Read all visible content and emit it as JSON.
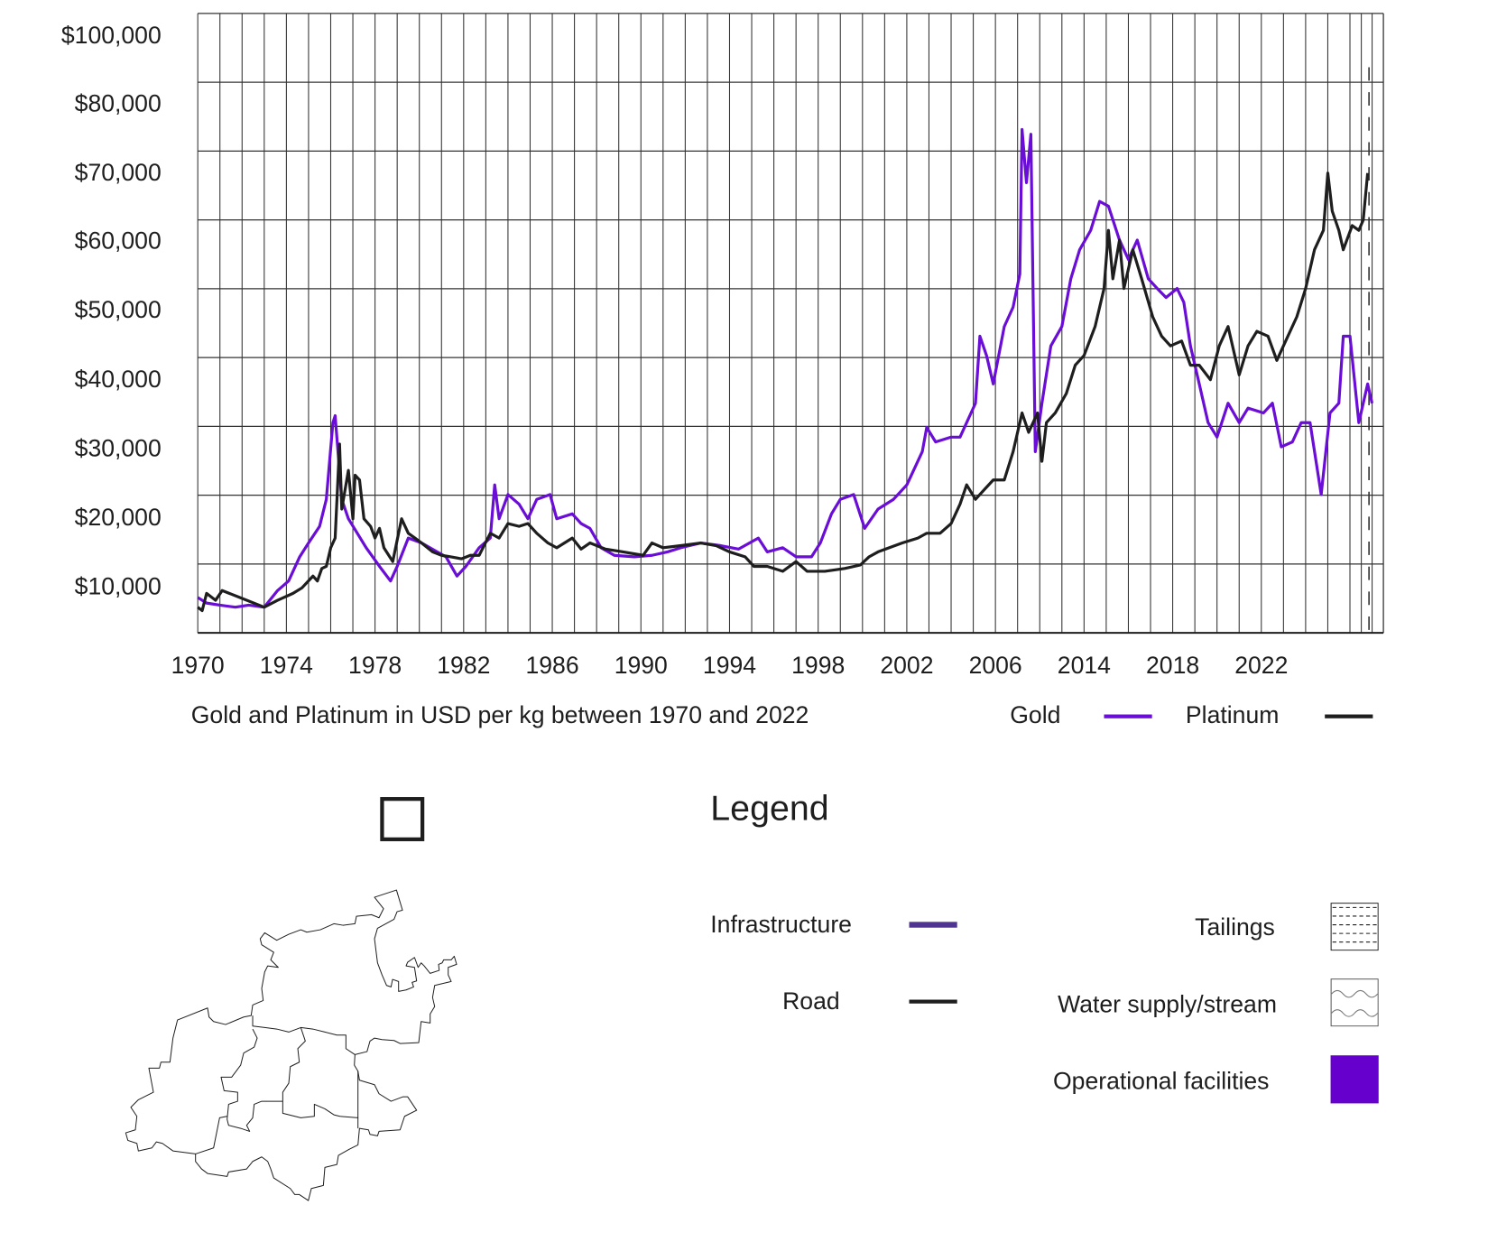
{
  "colors": {
    "gold": "#6a0dd6",
    "platinum": "#1e1e1e",
    "infrastructure": "#4f3591",
    "road": "#1e1e1e",
    "operational": "#6600cc"
  },
  "chart_data": {
    "type": "line",
    "title": "Gold and Platinum in USD per kg between 1970 and 2022",
    "xlabel": "",
    "ylabel": "",
    "y_unit": "thousand USD per kg",
    "x_range": [
      1970,
      2023.5
    ],
    "y_tick_labels": [
      "$100,000",
      "$80,000",
      "$70,000",
      "$60,000",
      "$50,000",
      "$40,000",
      "$30,000",
      "$20,000",
      "$10,000"
    ],
    "x_tick_labels": [
      "1970",
      "1974",
      "1978",
      "1982",
      "1986",
      "1990",
      "1994",
      "1998",
      "2002",
      "2006",
      "2014",
      "2018",
      "2022"
    ],
    "grid": true,
    "legend_position": "bottom-right",
    "legend": [
      {
        "label": "Gold"
      },
      {
        "label": "Platinum"
      }
    ],
    "series": [
      {
        "name": "Gold",
        "points": [
          [
            1970.0,
            8.3
          ],
          [
            1970.4,
            7.5
          ],
          [
            1971.0,
            7.2
          ],
          [
            1971.7,
            6.9
          ],
          [
            1972.3,
            7.2
          ],
          [
            1973.0,
            6.9
          ],
          [
            1973.6,
            9.3
          ],
          [
            1974.1,
            10.7
          ],
          [
            1974.6,
            14.2
          ],
          [
            1975.0,
            16.2
          ],
          [
            1975.5,
            18.6
          ],
          [
            1975.8,
            22.5
          ],
          [
            1976.1,
            33.6
          ],
          [
            1976.2,
            34.6
          ],
          [
            1976.5,
            22.5
          ],
          [
            1976.8,
            19.7
          ],
          [
            1977.2,
            17.6
          ],
          [
            1977.6,
            15.5
          ],
          [
            1978.2,
            12.8
          ],
          [
            1978.7,
            10.7
          ],
          [
            1979.0,
            12.8
          ],
          [
            1979.5,
            16.9
          ],
          [
            1980.1,
            16.2
          ],
          [
            1980.8,
            14.9
          ],
          [
            1981.2,
            14.2
          ],
          [
            1981.7,
            11.4
          ],
          [
            1982.1,
            12.8
          ],
          [
            1982.7,
            15.5
          ],
          [
            1983.2,
            16.9
          ],
          [
            1983.4,
            24.6
          ],
          [
            1983.6,
            19.7
          ],
          [
            1984.0,
            23.2
          ],
          [
            1984.5,
            21.8
          ],
          [
            1984.9,
            19.7
          ],
          [
            1985.3,
            22.5
          ],
          [
            1985.9,
            23.2
          ],
          [
            1986.2,
            19.7
          ],
          [
            1986.9,
            20.4
          ],
          [
            1987.3,
            19.0
          ],
          [
            1987.7,
            18.3
          ],
          [
            1988.2,
            15.5
          ],
          [
            1988.8,
            14.4
          ],
          [
            1989.7,
            14.2
          ],
          [
            1990.5,
            14.4
          ],
          [
            1991.2,
            14.9
          ],
          [
            1991.8,
            15.5
          ],
          [
            1992.7,
            16.2
          ],
          [
            1993.6,
            15.8
          ],
          [
            1994.4,
            15.3
          ],
          [
            1995.3,
            16.9
          ],
          [
            1995.7,
            14.9
          ],
          [
            1996.4,
            15.5
          ],
          [
            1997.0,
            14.2
          ],
          [
            1997.7,
            14.2
          ],
          [
            1998.1,
            16.2
          ],
          [
            1998.6,
            20.4
          ],
          [
            1999.0,
            22.5
          ],
          [
            1999.6,
            23.2
          ],
          [
            2000.1,
            18.3
          ],
          [
            2000.7,
            21.1
          ],
          [
            2001.4,
            22.5
          ],
          [
            2002.0,
            24.6
          ],
          [
            2002.7,
            29.4
          ],
          [
            2002.9,
            32.9
          ],
          [
            2003.3,
            30.8
          ],
          [
            2004.0,
            31.5
          ],
          [
            2004.4,
            31.5
          ],
          [
            2005.1,
            36.4
          ],
          [
            2005.3,
            46.1
          ],
          [
            2005.6,
            43.3
          ],
          [
            2005.9,
            39.2
          ],
          [
            2006.4,
            47.5
          ],
          [
            2006.8,
            50.3
          ],
          [
            2007.1,
            55.1
          ],
          [
            2007.2,
            76.0
          ],
          [
            2007.4,
            68.3
          ],
          [
            2007.6,
            75.3
          ],
          [
            2007.8,
            29.4
          ],
          [
            2008.1,
            36.4
          ],
          [
            2008.5,
            44.7
          ],
          [
            2009.0,
            47.5
          ],
          [
            2009.4,
            54.4
          ],
          [
            2009.8,
            58.6
          ],
          [
            2010.3,
            61.4
          ],
          [
            2010.7,
            65.6
          ],
          [
            2011.1,
            64.9
          ],
          [
            2011.6,
            60.0
          ],
          [
            2012.0,
            57.2
          ],
          [
            2012.4,
            60.0
          ],
          [
            2012.9,
            54.4
          ],
          [
            2013.3,
            53.0
          ],
          [
            2013.7,
            51.7
          ],
          [
            2014.2,
            53.0
          ],
          [
            2014.5,
            51.0
          ],
          [
            2014.8,
            44.7
          ],
          [
            2015.2,
            39.2
          ],
          [
            2015.6,
            33.6
          ],
          [
            2016.0,
            31.5
          ],
          [
            2016.5,
            36.4
          ],
          [
            2017.0,
            33.6
          ],
          [
            2017.4,
            35.7
          ],
          [
            2018.1,
            35.0
          ],
          [
            2018.5,
            36.4
          ],
          [
            2018.9,
            30.1
          ],
          [
            2019.4,
            30.8
          ],
          [
            2019.8,
            33.6
          ],
          [
            2020.2,
            33.6
          ],
          [
            2020.7,
            23.2
          ],
          [
            2021.1,
            35.0
          ],
          [
            2021.5,
            36.4
          ],
          [
            2021.7,
            46.1
          ],
          [
            2022.0,
            46.1
          ],
          [
            2022.4,
            33.6
          ],
          [
            2022.8,
            39.2
          ],
          [
            2023.0,
            36.4
          ]
        ]
      },
      {
        "name": "Platinum",
        "points": [
          [
            1970.0,
            6.9
          ],
          [
            1970.2,
            6.4
          ],
          [
            1970.4,
            8.9
          ],
          [
            1970.8,
            7.9
          ],
          [
            1971.1,
            9.3
          ],
          [
            1971.9,
            8.3
          ],
          [
            1973.0,
            6.9
          ],
          [
            1973.6,
            7.9
          ],
          [
            1974.3,
            8.9
          ],
          [
            1974.7,
            9.7
          ],
          [
            1975.2,
            11.4
          ],
          [
            1975.4,
            10.7
          ],
          [
            1975.6,
            12.5
          ],
          [
            1975.8,
            12.8
          ],
          [
            1976.0,
            15.5
          ],
          [
            1976.2,
            16.9
          ],
          [
            1976.4,
            30.5
          ],
          [
            1976.5,
            21.1
          ],
          [
            1976.8,
            26.7
          ],
          [
            1977.0,
            19.7
          ],
          [
            1977.1,
            26.0
          ],
          [
            1977.3,
            25.3
          ],
          [
            1977.5,
            19.7
          ],
          [
            1977.8,
            18.6
          ],
          [
            1978.0,
            16.9
          ],
          [
            1978.2,
            18.3
          ],
          [
            1978.4,
            15.5
          ],
          [
            1978.8,
            13.5
          ],
          [
            1979.2,
            19.7
          ],
          [
            1979.5,
            17.6
          ],
          [
            1979.8,
            16.9
          ],
          [
            1980.1,
            16.2
          ],
          [
            1980.6,
            14.9
          ],
          [
            1981.0,
            14.4
          ],
          [
            1981.4,
            14.2
          ],
          [
            1981.9,
            13.9
          ],
          [
            1982.3,
            14.4
          ],
          [
            1982.7,
            14.4
          ],
          [
            1983.2,
            17.6
          ],
          [
            1983.6,
            16.9
          ],
          [
            1984.0,
            19.0
          ],
          [
            1984.5,
            18.6
          ],
          [
            1984.9,
            19.0
          ],
          [
            1985.3,
            17.6
          ],
          [
            1985.8,
            16.2
          ],
          [
            1986.2,
            15.5
          ],
          [
            1986.9,
            16.9
          ],
          [
            1987.3,
            15.3
          ],
          [
            1987.7,
            16.2
          ],
          [
            1988.4,
            15.3
          ],
          [
            1989.2,
            14.9
          ],
          [
            1990.1,
            14.4
          ],
          [
            1990.5,
            16.2
          ],
          [
            1991.0,
            15.5
          ],
          [
            1991.8,
            15.8
          ],
          [
            1992.7,
            16.2
          ],
          [
            1993.4,
            15.8
          ],
          [
            1994.0,
            14.9
          ],
          [
            1994.7,
            14.2
          ],
          [
            1995.1,
            12.8
          ],
          [
            1995.7,
            12.8
          ],
          [
            1996.4,
            12.1
          ],
          [
            1997.0,
            13.5
          ],
          [
            1997.5,
            12.1
          ],
          [
            1998.3,
            12.1
          ],
          [
            1999.2,
            12.5
          ],
          [
            1999.9,
            13.0
          ],
          [
            2000.3,
            14.2
          ],
          [
            2000.7,
            14.9
          ],
          [
            2001.2,
            15.5
          ],
          [
            2001.8,
            16.2
          ],
          [
            2002.5,
            16.9
          ],
          [
            2002.9,
            17.6
          ],
          [
            2003.5,
            17.6
          ],
          [
            2004.0,
            19.0
          ],
          [
            2004.4,
            21.8
          ],
          [
            2004.7,
            24.6
          ],
          [
            2005.1,
            22.5
          ],
          [
            2005.5,
            23.9
          ],
          [
            2005.9,
            25.3
          ],
          [
            2006.4,
            25.3
          ],
          [
            2006.8,
            29.4
          ],
          [
            2007.2,
            35.0
          ],
          [
            2007.5,
            32.2
          ],
          [
            2007.9,
            35.0
          ],
          [
            2008.1,
            28.0
          ],
          [
            2008.3,
            33.6
          ],
          [
            2008.7,
            35.0
          ],
          [
            2009.2,
            37.8
          ],
          [
            2009.6,
            41.9
          ],
          [
            2010.0,
            43.3
          ],
          [
            2010.5,
            47.5
          ],
          [
            2010.9,
            53.0
          ],
          [
            2011.1,
            61.4
          ],
          [
            2011.3,
            54.4
          ],
          [
            2011.6,
            60.0
          ],
          [
            2011.8,
            53.0
          ],
          [
            2012.2,
            58.6
          ],
          [
            2012.6,
            54.4
          ],
          [
            2013.1,
            48.9
          ],
          [
            2013.5,
            46.1
          ],
          [
            2013.9,
            44.7
          ],
          [
            2014.4,
            45.4
          ],
          [
            2014.8,
            41.9
          ],
          [
            2015.2,
            41.9
          ],
          [
            2015.7,
            39.8
          ],
          [
            2016.1,
            44.7
          ],
          [
            2016.5,
            47.5
          ],
          [
            2017.0,
            40.5
          ],
          [
            2017.4,
            44.7
          ],
          [
            2017.8,
            46.8
          ],
          [
            2018.3,
            46.1
          ],
          [
            2018.7,
            42.6
          ],
          [
            2019.1,
            45.4
          ],
          [
            2019.6,
            48.9
          ],
          [
            2020.0,
            53.0
          ],
          [
            2020.4,
            58.6
          ],
          [
            2020.8,
            61.4
          ],
          [
            2021.0,
            69.7
          ],
          [
            2021.2,
            64.2
          ],
          [
            2021.5,
            61.4
          ],
          [
            2021.7,
            58.6
          ],
          [
            2022.1,
            62.1
          ],
          [
            2022.4,
            61.4
          ],
          [
            2022.6,
            62.9
          ],
          [
            2022.8,
            69.7
          ]
        ]
      }
    ]
  },
  "map_legend": {
    "title": "Legend",
    "items": [
      {
        "label": "Infrastructure"
      },
      {
        "label": "Road"
      },
      {
        "label": "Tailings"
      },
      {
        "label": "Water supply/stream"
      },
      {
        "label": "Operational facilities"
      }
    ]
  }
}
